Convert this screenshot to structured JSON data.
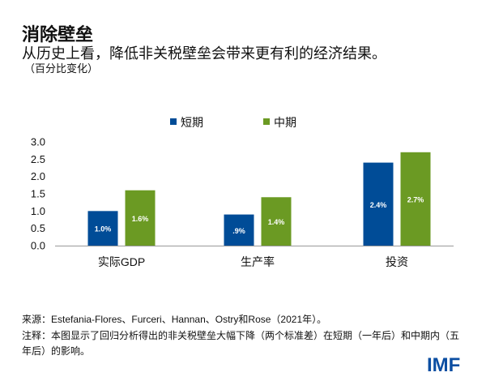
{
  "header": {
    "title": "消除壁垒",
    "subtitle": "从历史上看，降低非关税壁垒会带来更有利的经济结果。",
    "unit": "（百分比变化）"
  },
  "chart_data": {
    "type": "bar",
    "categories": [
      "实际GDP",
      "生产率",
      "投资"
    ],
    "series": [
      {
        "name": "短期",
        "color": "#004C97",
        "values": [
          1.0,
          0.9,
          2.4
        ],
        "labels": [
          "1.0%",
          ".9%",
          "2.4%"
        ]
      },
      {
        "name": "中期",
        "color": "#6B9A23",
        "values": [
          1.6,
          1.4,
          2.7
        ],
        "labels": [
          "1.6%",
          "1.4%",
          "2.7%"
        ]
      }
    ],
    "ylim": [
      0,
      3.0
    ],
    "yticks": [
      "0.0",
      "0.5",
      "1.0",
      "1.5",
      "2.0",
      "2.5",
      "3.0"
    ],
    "legend_position": "top",
    "grid": false
  },
  "footer": {
    "source": "来源：Estefania-Flores、Furceri、Hannan、Ostry和Rose（2021年）。",
    "note": "注释：本图显示了回归分析得出的非关税壁垒大幅下降（两个标准差）在短期（一年后）和中期内（五年后）的影响。",
    "logo": "IMF"
  }
}
